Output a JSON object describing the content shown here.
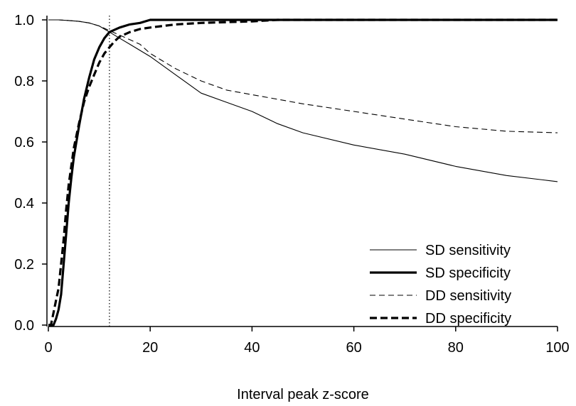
{
  "chart_data": {
    "type": "line",
    "title": "",
    "xlabel": "Interval peak z-score",
    "ylabel": "",
    "xlim": [
      0,
      100
    ],
    "ylim": [
      0,
      1.0
    ],
    "xticks": [
      0,
      20,
      40,
      60,
      80,
      100
    ],
    "yticks": [
      0.0,
      0.2,
      0.4,
      0.6,
      0.8,
      1.0
    ],
    "xtick_labels": [
      "0",
      "20",
      "40",
      "60",
      "80",
      "100"
    ],
    "ytick_labels": [
      "0.0",
      "0.2",
      "0.4",
      "0.6",
      "0.8",
      "1.0"
    ],
    "grid": false,
    "legend_position": "bottom-right",
    "reference_line": {
      "x": 12,
      "style": "dotted"
    },
    "series": [
      {
        "name": "SD sensitivity",
        "style": "thin-solid",
        "color": "#000000",
        "x": [
          0,
          2,
          4,
          6,
          8,
          10,
          12,
          14,
          16,
          18,
          20,
          25,
          30,
          35,
          40,
          45,
          50,
          60,
          70,
          80,
          90,
          100
        ],
        "y": [
          1.0,
          1.0,
          0.998,
          0.995,
          0.99,
          0.98,
          0.96,
          0.94,
          0.92,
          0.9,
          0.88,
          0.82,
          0.76,
          0.73,
          0.7,
          0.66,
          0.63,
          0.59,
          0.56,
          0.52,
          0.49,
          0.47
        ]
      },
      {
        "name": "SD specificity",
        "style": "thick-solid",
        "color": "#000000",
        "x": [
          0,
          1,
          1.5,
          2,
          2.5,
          3,
          3.5,
          4,
          4.5,
          5,
          6,
          7,
          8,
          9,
          10,
          11,
          12,
          14,
          16,
          18,
          20,
          30,
          50,
          100
        ],
        "y": [
          0.0,
          0.0,
          0.02,
          0.05,
          0.1,
          0.2,
          0.3,
          0.4,
          0.48,
          0.55,
          0.65,
          0.74,
          0.81,
          0.87,
          0.91,
          0.94,
          0.96,
          0.975,
          0.985,
          0.99,
          1.0,
          1.0,
          1.0,
          1.0
        ]
      },
      {
        "name": "DD sensitivity",
        "style": "thin-dashed",
        "color": "#000000",
        "x": [
          0,
          2,
          4,
          6,
          8,
          10,
          12,
          14,
          16,
          18,
          20,
          25,
          30,
          35,
          40,
          45,
          50,
          60,
          70,
          80,
          90,
          100
        ],
        "y": [
          1.0,
          1.0,
          0.998,
          0.995,
          0.99,
          0.98,
          0.965,
          0.95,
          0.935,
          0.92,
          0.89,
          0.84,
          0.8,
          0.77,
          0.755,
          0.74,
          0.725,
          0.7,
          0.675,
          0.65,
          0.635,
          0.63
        ]
      },
      {
        "name": "DD specificity",
        "style": "thick-dashed",
        "color": "#000000",
        "x": [
          0,
          0.5,
          1,
          1.5,
          2,
          2.5,
          3,
          3.5,
          4,
          4.5,
          5,
          6,
          7,
          8,
          9,
          10,
          11,
          12,
          13,
          14,
          16,
          18,
          20,
          25,
          30,
          40,
          45,
          47,
          100
        ],
        "y": [
          0.0,
          0.0,
          0.04,
          0.08,
          0.12,
          0.2,
          0.28,
          0.38,
          0.46,
          0.52,
          0.58,
          0.66,
          0.73,
          0.78,
          0.82,
          0.86,
          0.89,
          0.91,
          0.93,
          0.945,
          0.96,
          0.97,
          0.975,
          0.985,
          0.99,
          0.995,
          1.0,
          1.0,
          1.0
        ]
      }
    ]
  }
}
